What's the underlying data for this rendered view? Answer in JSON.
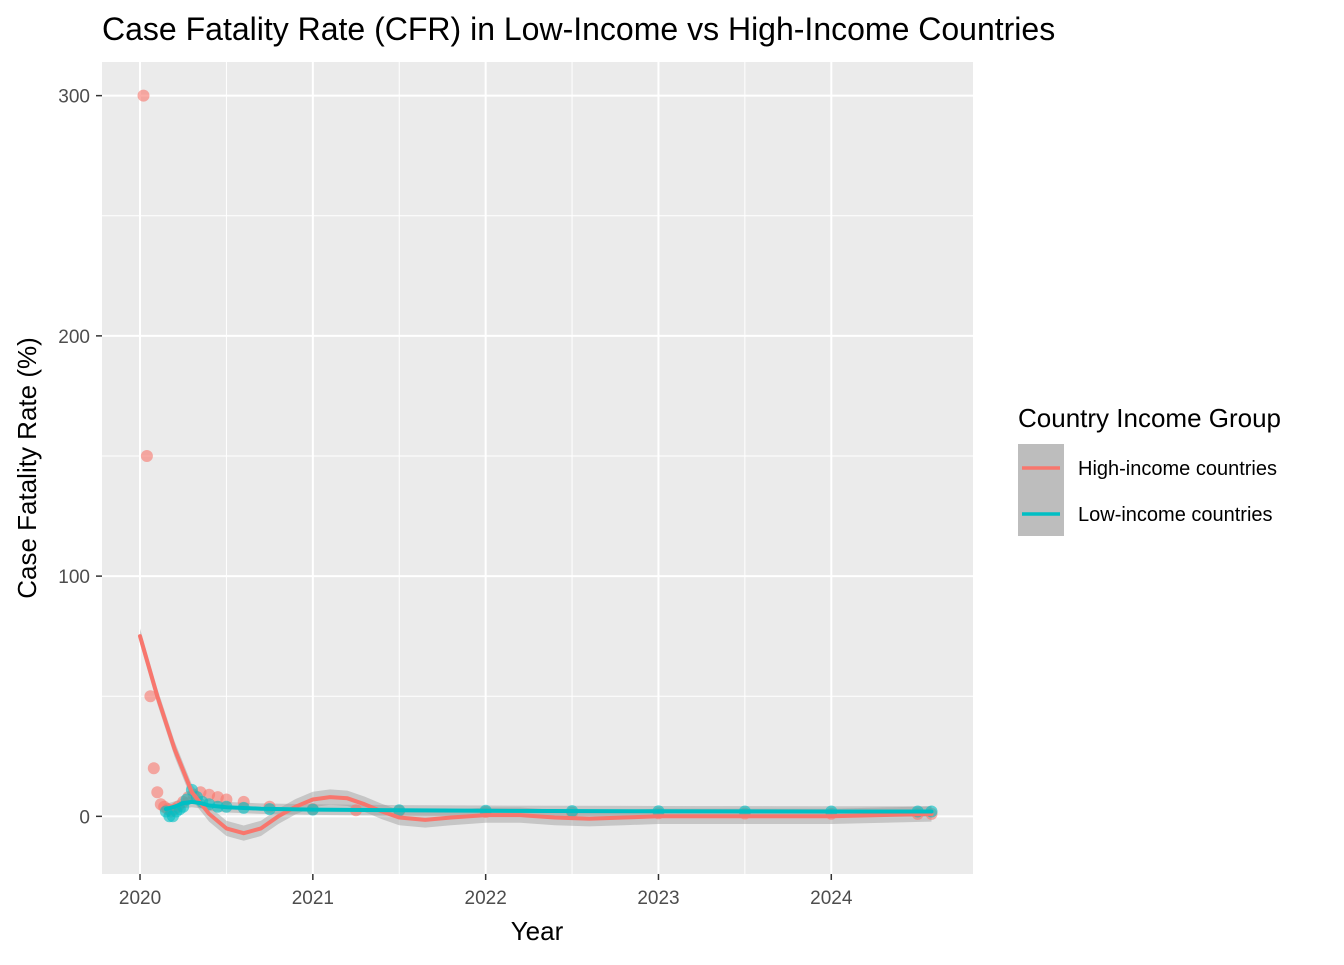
{
  "chart_data": {
    "type": "scatter",
    "title": "Case Fatality Rate (CFR) in Low-Income vs High-Income Countries",
    "xlabel": "Year",
    "ylabel": "Case Fatality Rate (%)",
    "x_unit": "year",
    "xlim": [
      2019.78,
      2024.82
    ],
    "ylim": [
      -24,
      314
    ],
    "x_ticks": [
      2020,
      2021,
      2022,
      2023,
      2024
    ],
    "y_ticks": [
      0,
      100,
      200,
      300
    ],
    "grid": true,
    "legend": {
      "title": "Country Income Group",
      "position": "right",
      "entries": [
        "High-income countries",
        "Low-income countries"
      ]
    },
    "colors": {
      "High-income countries": "#F8766D",
      "Low-income countries": "#00BFC4",
      "panel_background": "#EBEBEB",
      "grid": "#FFFFFF",
      "confidence_band": "#999999"
    },
    "series": [
      {
        "name": "High-income countries",
        "color": "#F8766D",
        "points": [
          [
            2020.02,
            300
          ],
          [
            2020.04,
            150
          ],
          [
            2020.06,
            50
          ],
          [
            2020.08,
            20
          ],
          [
            2020.1,
            10
          ],
          [
            2020.12,
            5
          ],
          [
            2020.14,
            4
          ],
          [
            2020.16,
            3
          ],
          [
            2020.18,
            2
          ],
          [
            2020.2,
            3
          ],
          [
            2020.22,
            4
          ],
          [
            2020.25,
            6
          ],
          [
            2020.28,
            8
          ],
          [
            2020.31,
            9
          ],
          [
            2020.35,
            10
          ],
          [
            2020.4,
            9
          ],
          [
            2020.45,
            8
          ],
          [
            2020.5,
            7
          ],
          [
            2020.6,
            6
          ],
          [
            2020.75,
            4
          ],
          [
            2021.0,
            3
          ],
          [
            2021.25,
            2.5
          ],
          [
            2021.5,
            2.2
          ],
          [
            2022.0,
            1.8
          ],
          [
            2022.5,
            1.5
          ],
          [
            2023.0,
            1.3
          ],
          [
            2023.5,
            1.2
          ],
          [
            2024.0,
            1.1
          ],
          [
            2024.5,
            1.0
          ],
          [
            2024.58,
            1.0
          ]
        ],
        "smooth": [
          [
            2020.0,
            75
          ],
          [
            2020.1,
            50
          ],
          [
            2020.2,
            28
          ],
          [
            2020.3,
            10
          ],
          [
            2020.4,
            1
          ],
          [
            2020.5,
            -5
          ],
          [
            2020.6,
            -7
          ],
          [
            2020.7,
            -5
          ],
          [
            2020.8,
            0
          ],
          [
            2020.9,
            4
          ],
          [
            2021.0,
            7
          ],
          [
            2021.1,
            8
          ],
          [
            2021.2,
            7.5
          ],
          [
            2021.3,
            5
          ],
          [
            2021.4,
            2
          ],
          [
            2021.5,
            -0.5
          ],
          [
            2021.65,
            -1.5
          ],
          [
            2021.8,
            -0.5
          ],
          [
            2022.0,
            0.5
          ],
          [
            2022.2,
            0.5
          ],
          [
            2022.4,
            -0.5
          ],
          [
            2022.6,
            -1
          ],
          [
            2022.8,
            -0.5
          ],
          [
            2023.0,
            0
          ],
          [
            2023.5,
            0
          ],
          [
            2024.0,
            0
          ],
          [
            2024.58,
            1
          ]
        ]
      },
      {
        "name": "Low-income countries",
        "color": "#00BFC4",
        "points": [
          [
            2020.15,
            2
          ],
          [
            2020.17,
            0
          ],
          [
            2020.19,
            0
          ],
          [
            2020.21,
            2
          ],
          [
            2020.23,
            3
          ],
          [
            2020.25,
            4
          ],
          [
            2020.27,
            7
          ],
          [
            2020.3,
            11
          ],
          [
            2020.33,
            8
          ],
          [
            2020.36,
            6
          ],
          [
            2020.4,
            5
          ],
          [
            2020.45,
            4
          ],
          [
            2020.5,
            4
          ],
          [
            2020.6,
            3.5
          ],
          [
            2020.75,
            3
          ],
          [
            2021.0,
            2.8
          ],
          [
            2021.5,
            2.5
          ],
          [
            2022.0,
            2.3
          ],
          [
            2022.5,
            2.2
          ],
          [
            2023.0,
            2.1
          ],
          [
            2023.5,
            2.0
          ],
          [
            2024.0,
            2.0
          ],
          [
            2024.5,
            2.0
          ],
          [
            2024.58,
            2.0
          ]
        ],
        "smooth": [
          [
            2020.15,
            3
          ],
          [
            2020.2,
            4
          ],
          [
            2020.25,
            5.5
          ],
          [
            2020.3,
            6
          ],
          [
            2020.35,
            5.5
          ],
          [
            2020.4,
            4.5
          ],
          [
            2020.5,
            3.8
          ],
          [
            2020.7,
            3.2
          ],
          [
            2021.0,
            2.8
          ],
          [
            2021.5,
            2.5
          ],
          [
            2022.0,
            2.3
          ],
          [
            2023.0,
            2.1
          ],
          [
            2024.0,
            2.0
          ],
          [
            2024.58,
            2.0
          ]
        ]
      }
    ]
  }
}
